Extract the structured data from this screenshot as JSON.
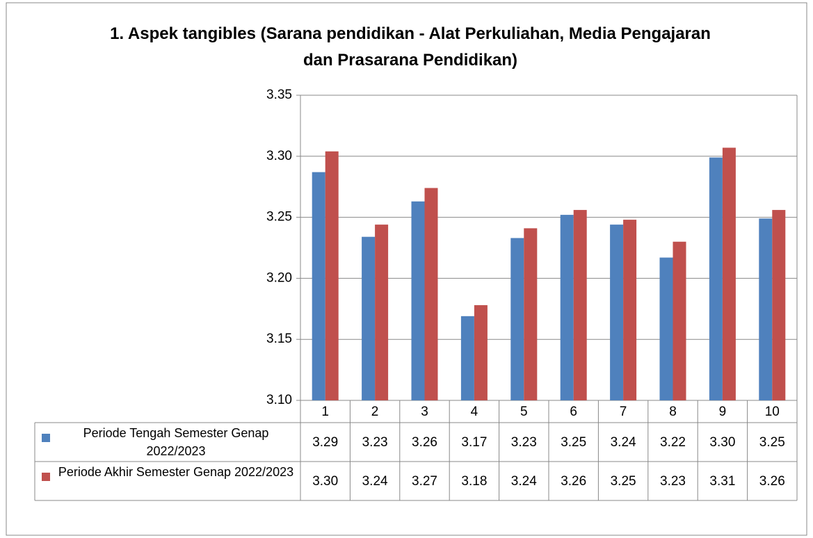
{
  "chart_data": {
    "type": "bar",
    "title": "1. Aspek tangibles (Sarana pendidikan - Alat Perkuliahan, Media Pengajaran dan Prasarana Pendidikan)",
    "categories": [
      "1",
      "2",
      "3",
      "4",
      "5",
      "6",
      "7",
      "8",
      "9",
      "10"
    ],
    "series": [
      {
        "name": "Periode Tengah Semester Genap 2022/2023",
        "color": "#4f81bd",
        "values": [
          3.287,
          3.234,
          3.263,
          3.169,
          3.233,
          3.252,
          3.244,
          3.217,
          3.299,
          3.249
        ],
        "value_labels": [
          "3.29",
          "3.23",
          "3.26",
          "3.17",
          "3.23",
          "3.25",
          "3.24",
          "3.22",
          "3.30",
          "3.25"
        ]
      },
      {
        "name": "Periode Akhir Semester Genap 2022/2023",
        "color": "#c0504d",
        "values": [
          3.304,
          3.244,
          3.274,
          3.178,
          3.241,
          3.256,
          3.248,
          3.23,
          3.307,
          3.256
        ],
        "value_labels": [
          "3.30",
          "3.24",
          "3.27",
          "3.18",
          "3.24",
          "3.26",
          "3.25",
          "3.23",
          "3.31",
          "3.26"
        ]
      }
    ],
    "ylim": [
      3.1,
      3.35
    ],
    "yticks": [
      {
        "value": 3.1,
        "label": "3.10"
      },
      3.15,
      {
        "value": 3.2,
        "label": "3.20"
      },
      3.25,
      {
        "value": 3.3,
        "label": "3.30"
      },
      3.35
    ],
    "grid": true
  }
}
